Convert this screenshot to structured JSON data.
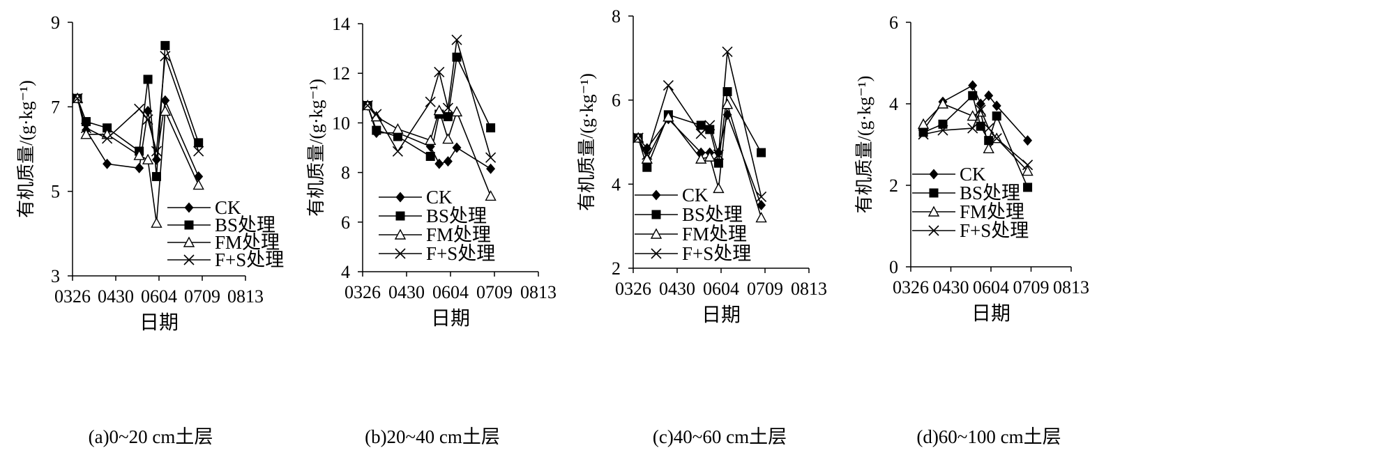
{
  "chart_data": [
    {
      "type": "line",
      "caption": "(a)0~20 cm土层",
      "xlabel": "日期",
      "ylabel": "有机质量/(g·kg⁻¹)",
      "ylim": [
        3,
        9
      ],
      "yticks": [
        3,
        5,
        7,
        9
      ],
      "xticks": [
        {
          "label": "0326",
          "day": 0
        },
        {
          "label": "0430",
          "day": 35
        },
        {
          "label": "0604",
          "day": 70
        },
        {
          "label": "0709",
          "day": 105
        },
        {
          "label": "0813",
          "day": 140
        }
      ],
      "xlim": [
        0,
        140
      ],
      "legend": "bottom-right",
      "series": [
        {
          "name": "CK",
          "marker": "diamond",
          "x": [
            4,
            11,
            28,
            54,
            61,
            68,
            75,
            102
          ],
          "y": [
            7.2,
            6.45,
            5.65,
            5.55,
            6.9,
            5.75,
            7.15,
            5.35
          ]
        },
        {
          "name": "BS处理",
          "marker": "square",
          "x": [
            4,
            11,
            28,
            54,
            61,
            68,
            75,
            102
          ],
          "y": [
            7.2,
            6.65,
            6.5,
            5.95,
            7.65,
            5.35,
            8.45,
            6.15
          ]
        },
        {
          "name": "FM处理",
          "marker": "triangle",
          "x": [
            4,
            11,
            28,
            54,
            61,
            68,
            75,
            102
          ],
          "y": [
            7.2,
            6.35,
            6.35,
            5.85,
            5.75,
            4.25,
            6.9,
            5.15
          ]
        },
        {
          "name": "F+S处理",
          "marker": "x",
          "x": [
            4,
            11,
            28,
            54,
            61,
            68,
            75,
            102
          ],
          "y": [
            7.2,
            6.5,
            6.25,
            6.95,
            6.7,
            5.95,
            8.2,
            5.95
          ]
        }
      ]
    },
    {
      "type": "line",
      "caption": "(b)20~40 cm土层",
      "xlabel": "日期",
      "ylabel": "有机质量/(g·kg⁻¹)",
      "ylim": [
        4,
        14
      ],
      "yticks": [
        4,
        6,
        8,
        10,
        12,
        14
      ],
      "xticks": [
        {
          "label": "0326",
          "day": 0
        },
        {
          "label": "0430",
          "day": 35
        },
        {
          "label": "0604",
          "day": 70
        },
        {
          "label": "0709",
          "day": 105
        },
        {
          "label": "0813",
          "day": 140
        }
      ],
      "xlim": [
        0,
        140
      ],
      "legend": "bottom-left",
      "series": [
        {
          "name": "CK",
          "marker": "diamond",
          "x": [
            4,
            11,
            28,
            54,
            61,
            68,
            75,
            102
          ],
          "y": [
            10.7,
            9.6,
            9.6,
            9.05,
            8.35,
            8.45,
            9.0,
            8.15
          ]
        },
        {
          "name": "BS处理",
          "marker": "square",
          "x": [
            4,
            11,
            28,
            54,
            61,
            68,
            75,
            102
          ],
          "y": [
            10.7,
            9.7,
            9.45,
            8.65,
            10.35,
            10.25,
            12.65,
            9.8
          ]
        },
        {
          "name": "FM处理",
          "marker": "triangle",
          "x": [
            4,
            11,
            28,
            54,
            61,
            68,
            75,
            102
          ],
          "y": [
            10.7,
            10.25,
            9.75,
            9.3,
            10.5,
            9.35,
            10.45,
            7.05
          ]
        },
        {
          "name": "F+S处理",
          "marker": "x",
          "x": [
            4,
            11,
            28,
            54,
            61,
            68,
            75,
            102
          ],
          "y": [
            10.7,
            10.35,
            8.85,
            10.85,
            12.05,
            10.6,
            13.35,
            8.6
          ]
        }
      ]
    },
    {
      "type": "line",
      "caption": "(c)40~60 cm土层",
      "xlabel": "日期",
      "ylabel": "有机质量/(g·kg⁻¹)",
      "ylim": [
        2,
        8
      ],
      "yticks": [
        2,
        4,
        6,
        8
      ],
      "xticks": [
        {
          "label": "0326",
          "day": 0
        },
        {
          "label": "0430",
          "day": 35
        },
        {
          "label": "0604",
          "day": 70
        },
        {
          "label": "0709",
          "day": 105
        },
        {
          "label": "0813",
          "day": 140
        }
      ],
      "xlim": [
        0,
        140
      ],
      "legend": "bottom-left",
      "series": [
        {
          "name": "CK",
          "marker": "diamond",
          "x": [
            4,
            11,
            28,
            54,
            61,
            68,
            75,
            102
          ],
          "y": [
            5.1,
            4.85,
            5.55,
            4.75,
            4.75,
            4.75,
            5.65,
            3.5
          ]
        },
        {
          "name": "BS处理",
          "marker": "square",
          "x": [
            4,
            11,
            28,
            54,
            61,
            68,
            75,
            102
          ],
          "y": [
            5.1,
            4.4,
            5.65,
            5.4,
            5.3,
            4.5,
            6.2,
            4.75
          ]
        },
        {
          "name": "FM处理",
          "marker": "triangle",
          "x": [
            4,
            11,
            28,
            54,
            61,
            68,
            75,
            102
          ],
          "y": [
            5.1,
            4.6,
            5.6,
            4.6,
            4.65,
            3.9,
            5.9,
            3.2
          ]
        },
        {
          "name": "F+S处理",
          "marker": "x",
          "x": [
            4,
            11,
            28,
            54,
            61,
            68,
            75,
            102
          ],
          "y": [
            5.1,
            4.7,
            6.35,
            5.2,
            5.4,
            4.7,
            7.15,
            3.7
          ]
        }
      ]
    },
    {
      "type": "line",
      "caption": "(d)60~100 cm土层",
      "xlabel": "日期",
      "ylabel": "有机质量/(g·kg⁻¹)",
      "ylim": [
        0,
        6
      ],
      "yticks": [
        0,
        2,
        4,
        6
      ],
      "xticks": [
        {
          "label": "0326",
          "day": 0
        },
        {
          "label": "0430",
          "day": 35
        },
        {
          "label": "0604",
          "day": 70
        },
        {
          "label": "0709",
          "day": 105
        },
        {
          "label": "0813",
          "day": 140
        }
      ],
      "xlim": [
        0,
        140
      ],
      "legend": "bottom-left",
      "series": [
        {
          "name": "CK",
          "marker": "diamond",
          "x": [
            11,
            28,
            54,
            61,
            68,
            75,
            102
          ],
          "y": [
            3.35,
            4.05,
            4.45,
            4.0,
            4.2,
            3.95,
            3.1
          ]
        },
        {
          "name": "BS处理",
          "marker": "square",
          "x": [
            11,
            28,
            54,
            61,
            68,
            75,
            102
          ],
          "y": [
            3.3,
            3.5,
            4.2,
            3.45,
            3.1,
            3.7,
            1.95
          ]
        },
        {
          "name": "FM处理",
          "marker": "triangle",
          "x": [
            11,
            28,
            54,
            61,
            68,
            75,
            102
          ],
          "y": [
            3.5,
            4.0,
            3.7,
            3.8,
            2.9,
            3.15,
            2.35
          ]
        },
        {
          "name": "F+S处理",
          "marker": "x",
          "x": [
            11,
            28,
            54,
            61,
            68,
            75,
            102
          ],
          "y": [
            3.25,
            3.35,
            3.4,
            3.85,
            3.4,
            3.15,
            2.5
          ]
        }
      ]
    }
  ]
}
